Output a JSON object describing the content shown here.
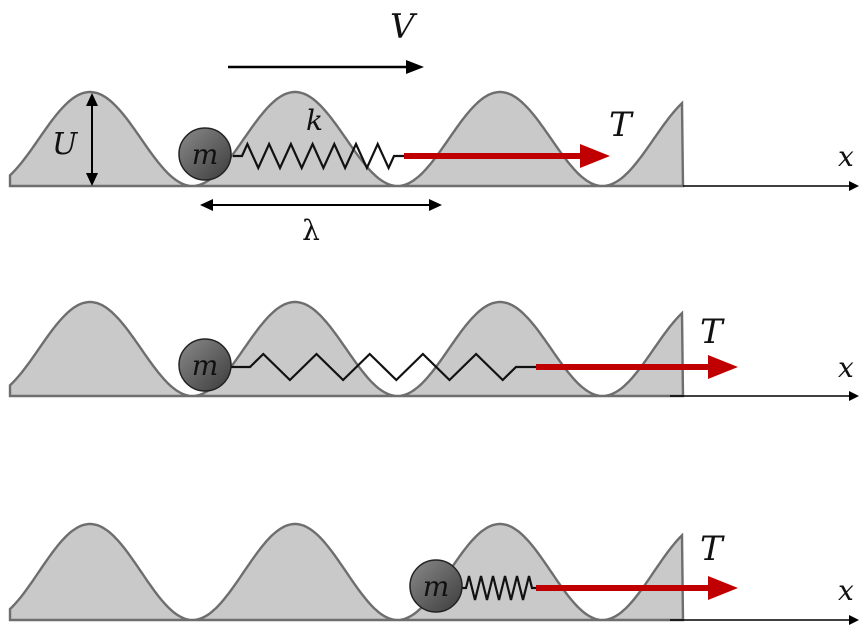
{
  "labels": {
    "velocity": "V",
    "amplitude": "U",
    "stiffness": "k",
    "wavelength": "λ",
    "mass": "m",
    "tension": "T",
    "axis": "x"
  },
  "colors": {
    "potential_fill": "#c9c9c9",
    "potential_stroke": "#6e6e6e",
    "pull_arrow": "#c00000",
    "spring": "#111111",
    "mass_fill": "#5a5a5a",
    "axis": "#000000"
  },
  "panels": [
    {
      "panel": 1,
      "mass_label_shown": true,
      "spring_state": "compressed",
      "shows_dimensions": true
    },
    {
      "panel": 2,
      "mass_label_shown": true,
      "spring_state": "stretched",
      "shows_dimensions": false
    },
    {
      "panel": 3,
      "mass_label_shown": true,
      "spring_state": "compressed",
      "shows_dimensions": false
    }
  ]
}
